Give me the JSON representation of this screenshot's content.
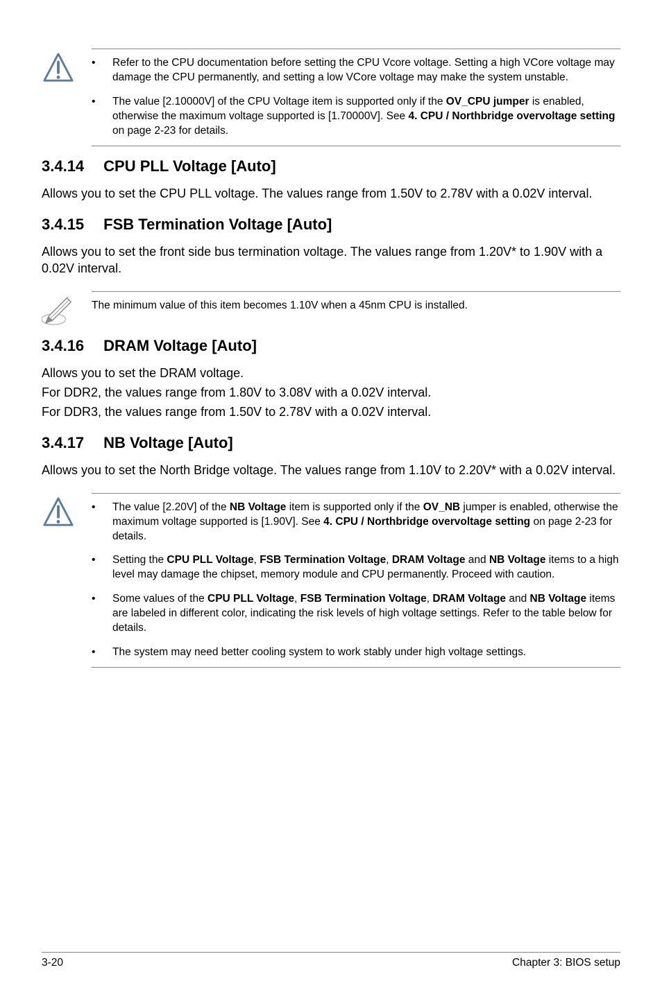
{
  "note1": {
    "bullets": [
      {
        "parts": [
          "Refer to the CPU documentation before setting the CPU Vcore voltage. Setting a high VCore voltage may damage the CPU permanently, and setting a low VCore voltage may make the system unstable."
        ]
      },
      {
        "parts": [
          "The value [2.10000V] of the CPU Voltage item is supported only if the ",
          "<b>OV_CPU jumper</b>",
          " is enabled, otherwise the maximum voltage supported is [1.70000V]. See ",
          "<b>4. CPU / Northbridge overvoltage setting</b>",
          " on page 2-23 for details."
        ]
      }
    ]
  },
  "s14": {
    "num": "3.4.14",
    "title": "CPU PLL Voltage [Auto]",
    "body": "Allows you to set the CPU PLL voltage. The values range from 1.50V to 2.78V with a 0.02V interval."
  },
  "s15": {
    "num": "3.4.15",
    "title": "FSB Termination Voltage [Auto]",
    "body": "Allows you to set the front side bus termination voltage. The values range from 1.20V* to 1.90V with a 0.02V interval."
  },
  "note2": {
    "text": "The minimum value of this item becomes 1.10V when a 45nm CPU is installed."
  },
  "s16": {
    "num": "3.4.16",
    "title": "DRAM Voltage [Auto]",
    "l1": "Allows you to set the DRAM voltage.",
    "l2": "For DDR2, the values range from 1.80V to 3.08V with a 0.02V interval.",
    "l3": "For DDR3, the values range from 1.50V to 2.78V with a 0.02V interval."
  },
  "s17": {
    "num": "3.4.17",
    "title": "NB Voltage [Auto]",
    "body": "Allows you to set the North Bridge voltage. The values range from 1.10V to 2.20V* with a 0.02V interval."
  },
  "note3": {
    "bullets": [
      {
        "parts": [
          "The value [2.20V] of the ",
          "<b>NB Voltage</b>",
          " item is supported only if the ",
          "<b>OV_NB</b>",
          " jumper is enabled, otherwise the maximum voltage supported is [1.90V]. See ",
          "<b>4. CPU / Northbridge overvoltage setting</b>",
          " on page 2-23 for details."
        ]
      },
      {
        "parts": [
          "Setting the ",
          "<b>CPU PLL Voltage</b>",
          ", ",
          "<b>FSB Termination Voltage</b>",
          ", ",
          "<b>DRAM Voltage</b>",
          " and ",
          "<b>NB Voltage</b>",
          " items to a high level may damage the chipset, memory module and CPU permanently. Proceed with caution."
        ]
      },
      {
        "parts": [
          "Some values of the ",
          "<b>CPU PLL Voltage</b>",
          ", ",
          "<b>FSB Termination Voltage</b>",
          ", ",
          "<b>DRAM Voltage</b>",
          " and ",
          "<b>NB Voltage</b>",
          " items are labeled in different color, indicating the risk levels of high voltage settings. Refer to the table below for details."
        ]
      },
      {
        "parts": [
          "The system may need better cooling system to work stably under high voltage settings."
        ]
      }
    ]
  },
  "footer": {
    "left": "3-20",
    "right": "Chapter 3: BIOS setup"
  },
  "bullet_char": "•"
}
